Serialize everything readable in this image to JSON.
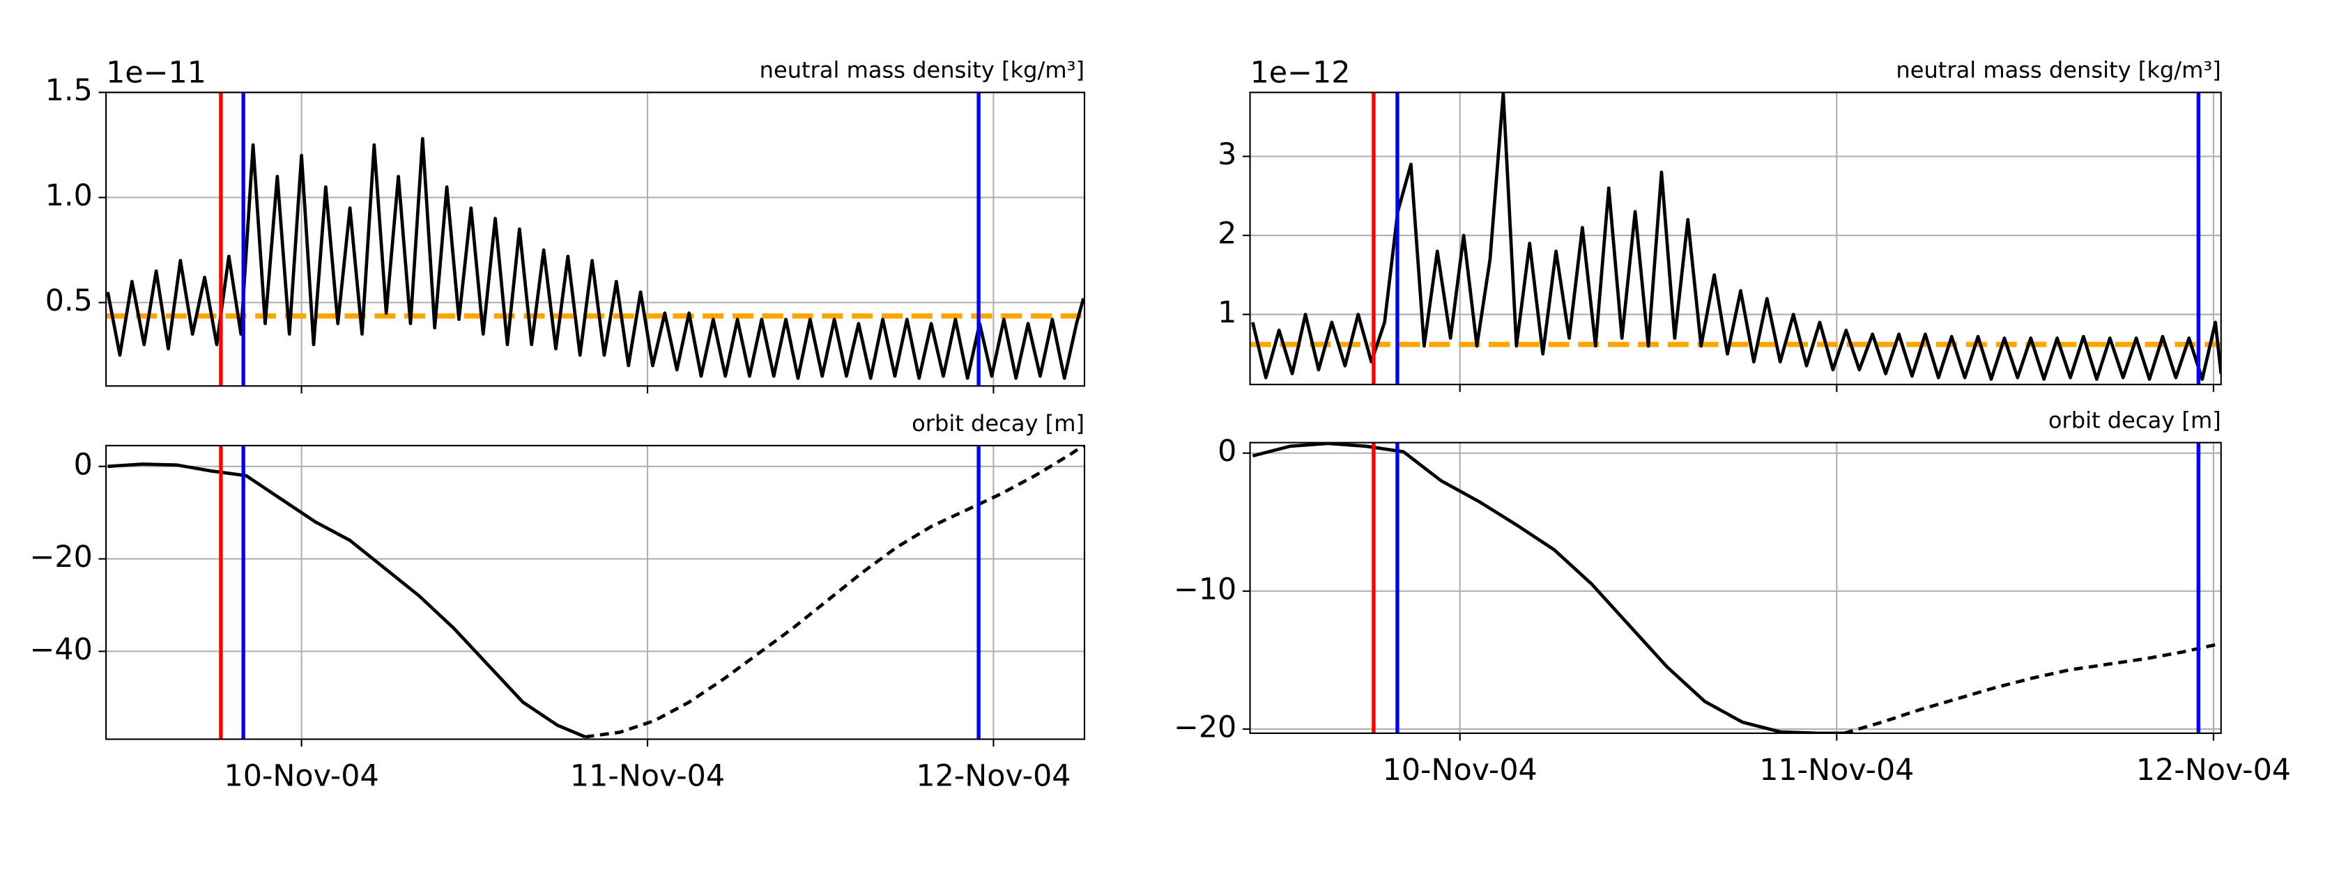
{
  "chart_data": [
    {
      "type": "line",
      "title": "neutral mass density [kg/m³]",
      "offset_label": "1e−11",
      "grid": true,
      "xlim": [
        9.435,
        12.263
      ],
      "xticks": [
        {
          "value": 10,
          "label": null
        },
        {
          "value": 11,
          "label": null
        },
        {
          "value": 12,
          "label": null
        }
      ],
      "ylim": [
        0.103,
        1.5
      ],
      "yticks": [
        0.5,
        {
          "value": 1,
          "label": "1.0"
        },
        1.5
      ],
      "x": [
        9.44,
        9.475,
        9.51,
        9.545,
        9.58,
        9.615,
        9.65,
        9.685,
        9.72,
        9.755,
        9.79,
        9.825,
        9.86,
        9.895,
        9.93,
        9.965,
        10.0,
        10.035,
        10.07,
        10.105,
        10.14,
        10.175,
        10.21,
        10.245,
        10.28,
        10.315,
        10.35,
        10.385,
        10.42,
        10.455,
        10.49,
        10.525,
        10.56,
        10.595,
        10.63,
        10.665,
        10.7,
        10.735,
        10.77,
        10.805,
        10.84,
        10.875,
        10.91,
        10.945,
        10.98,
        11.015,
        11.05,
        11.085,
        11.12,
        11.155,
        11.19,
        11.225,
        11.26,
        11.295,
        11.33,
        11.365,
        11.4,
        11.435,
        11.47,
        11.505,
        11.54,
        11.575,
        11.61,
        11.645,
        11.68,
        11.715,
        11.75,
        11.785,
        11.82,
        11.855,
        11.89,
        11.925,
        11.96,
        11.995,
        12.03,
        12.065,
        12.1,
        12.135,
        12.17,
        12.205,
        12.24,
        12.26
      ],
      "series": [
        {
          "color": "#000000",
          "dash": false,
          "values": [
            0.55,
            0.25,
            0.6,
            0.3,
            0.65,
            0.28,
            0.7,
            0.35,
            0.62,
            0.3,
            0.72,
            0.35,
            1.25,
            0.4,
            1.1,
            0.35,
            1.2,
            0.3,
            1.05,
            0.4,
            0.95,
            0.35,
            1.25,
            0.45,
            1.1,
            0.4,
            1.28,
            0.38,
            1.05,
            0.42,
            0.95,
            0.35,
            0.9,
            0.3,
            0.85,
            0.3,
            0.75,
            0.28,
            0.72,
            0.25,
            0.7,
            0.25,
            0.6,
            0.2,
            0.55,
            0.2,
            0.45,
            0.18,
            0.45,
            0.15,
            0.42,
            0.15,
            0.42,
            0.15,
            0.42,
            0.15,
            0.42,
            0.14,
            0.42,
            0.15,
            0.42,
            0.15,
            0.4,
            0.14,
            0.42,
            0.15,
            0.42,
            0.14,
            0.4,
            0.15,
            0.42,
            0.14,
            0.4,
            0.15,
            0.42,
            0.14,
            0.4,
            0.15,
            0.42,
            0.14,
            0.4,
            0.52
          ]
        }
      ],
      "hlines": [
        {
          "value": 0.436,
          "color": "#ffa500",
          "dash": true
        }
      ],
      "vlines": [
        {
          "x": 9.767,
          "color": "#ff0000"
        },
        {
          "x": 9.832,
          "color": "#0000ff"
        },
        {
          "x": 11.957,
          "color": "#0000ff"
        }
      ]
    },
    {
      "type": "line",
      "title": "orbit decay [m]",
      "grid": true,
      "xlim": [
        9.435,
        12.263
      ],
      "xticks": [
        {
          "value": 10,
          "label": "10-Nov-04"
        },
        {
          "value": 11,
          "label": "11-Nov-04"
        },
        {
          "value": 12,
          "label": "12-Nov-04"
        }
      ],
      "ylim": [
        -59,
        4.5
      ],
      "yticks": [
        {
          "value": -40,
          "label": "−40"
        },
        {
          "value": -20,
          "label": "−20"
        },
        0
      ],
      "x": [
        9.44,
        9.54,
        9.64,
        9.74,
        9.84,
        9.94,
        10.04,
        10.14,
        10.24,
        10.34,
        10.44,
        10.54,
        10.64,
        10.74,
        10.82,
        10.92,
        11.02,
        11.12,
        11.22,
        11.32,
        11.42,
        11.52,
        11.62,
        11.72,
        11.82,
        11.92,
        12.02,
        12.12,
        12.22,
        12.26
      ],
      "series": [
        {
          "color": "#000000",
          "dash": false,
          "values": [
            0,
            0.5,
            0.3,
            -1,
            -2,
            -7,
            -12,
            -16,
            -22,
            -28,
            -35,
            -43,
            -51,
            -56,
            -58.5,
            null,
            null,
            null,
            null,
            null,
            null,
            null,
            null,
            null,
            null,
            null,
            null,
            null,
            null,
            null
          ]
        },
        {
          "color": "#000000",
          "dash": true,
          "values": [
            null,
            null,
            null,
            null,
            null,
            null,
            null,
            null,
            null,
            null,
            null,
            null,
            null,
            null,
            -58.5,
            -57.5,
            -55,
            -51,
            -46,
            -40.5,
            -35,
            -29,
            -23,
            -17.5,
            -13,
            -9.5,
            -6,
            -2,
            2.5,
            4.5
          ]
        }
      ],
      "vlines": [
        {
          "x": 9.767,
          "color": "#ff0000"
        },
        {
          "x": 9.832,
          "color": "#0000ff"
        },
        {
          "x": 11.957,
          "color": "#0000ff"
        }
      ]
    },
    {
      "type": "line",
      "title": "neutral mass density [kg/m³]",
      "offset_label": "1e−12",
      "grid": true,
      "xlim": [
        9.443,
        12.02
      ],
      "xticks": [
        {
          "value": 10,
          "label": null
        },
        {
          "value": 11,
          "label": null
        },
        {
          "value": 12,
          "label": null
        }
      ],
      "ylim": [
        0.113,
        3.81
      ],
      "yticks": [
        1,
        2,
        3
      ],
      "x": [
        9.45,
        9.485,
        9.52,
        9.555,
        9.59,
        9.625,
        9.66,
        9.695,
        9.73,
        9.765,
        9.8,
        9.835,
        9.87,
        9.905,
        9.94,
        9.975,
        10.01,
        10.045,
        10.08,
        10.115,
        10.15,
        10.185,
        10.22,
        10.255,
        10.29,
        10.325,
        10.36,
        10.395,
        10.43,
        10.465,
        10.5,
        10.535,
        10.57,
        10.605,
        10.64,
        10.675,
        10.71,
        10.745,
        10.78,
        10.815,
        10.85,
        10.885,
        10.92,
        10.955,
        10.99,
        11.025,
        11.06,
        11.095,
        11.13,
        11.165,
        11.2,
        11.235,
        11.27,
        11.305,
        11.34,
        11.375,
        11.41,
        11.445,
        11.48,
        11.515,
        11.55,
        11.585,
        11.62,
        11.655,
        11.69,
        11.725,
        11.76,
        11.795,
        11.83,
        11.865,
        11.9,
        11.935,
        11.97,
        12.005,
        12.02
      ],
      "series": [
        {
          "color": "#000000",
          "dash": false,
          "values": [
            0.9,
            0.2,
            0.8,
            0.25,
            1.0,
            0.3,
            0.9,
            0.35,
            1.0,
            0.4,
            0.9,
            2.3,
            2.9,
            0.6,
            1.8,
            0.7,
            2.0,
            0.6,
            1.7,
            3.8,
            0.6,
            1.9,
            0.5,
            1.8,
            0.7,
            2.1,
            0.6,
            2.6,
            0.7,
            2.3,
            0.6,
            2.8,
            0.7,
            2.2,
            0.6,
            1.5,
            0.5,
            1.3,
            0.4,
            1.2,
            0.4,
            1.0,
            0.35,
            0.9,
            0.3,
            0.8,
            0.3,
            0.75,
            0.25,
            0.75,
            0.22,
            0.75,
            0.2,
            0.72,
            0.2,
            0.72,
            0.18,
            0.7,
            0.2,
            0.7,
            0.18,
            0.7,
            0.2,
            0.72,
            0.18,
            0.7,
            0.2,
            0.7,
            0.18,
            0.72,
            0.2,
            0.7,
            0.18,
            0.9,
            0.25
          ]
        }
      ],
      "hlines": [
        {
          "value": 0.62,
          "color": "#ffa500",
          "dash": true
        }
      ],
      "vlines": [
        {
          "x": 9.771,
          "color": "#ff0000"
        },
        {
          "x": 9.834,
          "color": "#0000ff"
        },
        {
          "x": 11.96,
          "color": "#0000ff"
        }
      ]
    },
    {
      "type": "line",
      "title": "orbit decay [m]",
      "grid": true,
      "xlim": [
        9.443,
        12.02
      ],
      "xticks": [
        {
          "value": 10,
          "label": "10-Nov-04"
        },
        {
          "value": 11,
          "label": "11-Nov-04"
        },
        {
          "value": 12,
          "label": "12-Nov-04"
        }
      ],
      "ylim": [
        -20.3,
        0.76
      ],
      "yticks": [
        {
          "value": -20,
          "label": "−20"
        },
        {
          "value": -10,
          "label": "−10"
        },
        0
      ],
      "x": [
        9.45,
        9.55,
        9.65,
        9.75,
        9.85,
        9.95,
        10.05,
        10.15,
        10.25,
        10.35,
        10.45,
        10.55,
        10.65,
        10.75,
        10.85,
        10.95,
        11.02,
        11.12,
        11.22,
        11.32,
        11.42,
        11.52,
        11.62,
        11.72,
        11.82,
        11.92,
        12.02
      ],
      "series": [
        {
          "color": "#000000",
          "dash": false,
          "values": [
            -0.2,
            0.5,
            0.7,
            0.5,
            0.1,
            -2,
            -3.5,
            -5.2,
            -7,
            -9.5,
            -12.5,
            -15.5,
            -18,
            -19.5,
            -20.2,
            -20.3,
            -20.3,
            null,
            null,
            null,
            null,
            null,
            null,
            null,
            null,
            null,
            null
          ]
        },
        {
          "color": "#000000",
          "dash": true,
          "values": [
            null,
            null,
            null,
            null,
            null,
            null,
            null,
            null,
            null,
            null,
            null,
            null,
            null,
            null,
            null,
            null,
            -20.3,
            -19.5,
            -18.6,
            -17.8,
            -17.0,
            -16.3,
            -15.7,
            -15.3,
            -14.9,
            -14.4,
            -13.8
          ]
        }
      ],
      "vlines": [
        {
          "x": 9.771,
          "color": "#ff0000"
        },
        {
          "x": 9.834,
          "color": "#0000ff"
        },
        {
          "x": 11.96,
          "color": "#0000ff"
        }
      ]
    }
  ]
}
